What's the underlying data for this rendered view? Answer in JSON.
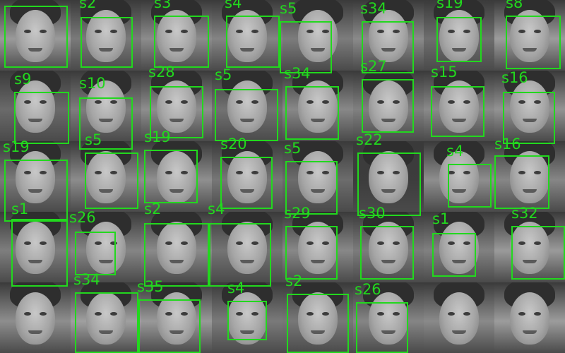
{
  "style": {
    "detection_color": "#22d81e"
  },
  "grid": {
    "columns": 8,
    "rows": 5,
    "tiles": [
      {
        "tone": "#9a9a9a"
      },
      {
        "tone": "#7a7a7a"
      },
      {
        "tone": "#8c8c8c"
      },
      {
        "tone": "#848484"
      },
      {
        "tone": "#7c7c7c"
      },
      {
        "tone": "#8a8a8a"
      },
      {
        "tone": "#6e6e6e"
      },
      {
        "tone": "#9c9c9c"
      },
      {
        "tone": "#6a6a6a"
      },
      {
        "tone": "#7e7e7e"
      },
      {
        "tone": "#8e8e8e"
      },
      {
        "tone": "#727272"
      },
      {
        "tone": "#888888"
      },
      {
        "tone": "#808080"
      },
      {
        "tone": "#8a8a8a"
      },
      {
        "tone": "#939393"
      },
      {
        "tone": "#7a7a7a"
      },
      {
        "tone": "#8c8c8c"
      },
      {
        "tone": "#8f8f8f"
      },
      {
        "tone": "#777777"
      },
      {
        "tone": "#6c6c6c"
      },
      {
        "tone": "#3d3d3d"
      },
      {
        "tone": "#8e8e8e"
      },
      {
        "tone": "#868686"
      },
      {
        "tone": "#7e7e7e"
      },
      {
        "tone": "#858585"
      },
      {
        "tone": "#8a8a8a"
      },
      {
        "tone": "#747474"
      },
      {
        "tone": "#888888"
      },
      {
        "tone": "#7c7c7c"
      },
      {
        "tone": "#818181"
      },
      {
        "tone": "#9a9a9a"
      },
      {
        "tone": "#8e8e8e"
      },
      {
        "tone": "#a0a0a0"
      },
      {
        "tone": "#999999"
      },
      {
        "tone": "#7a7a7a"
      },
      {
        "tone": "#787878"
      },
      {
        "tone": "#858585"
      },
      {
        "tone": "#8a8a8a"
      },
      {
        "tone": "#9c9c9c"
      }
    ]
  },
  "detections": [
    {
      "label": ""
    },
    {
      "label": "s2"
    },
    {
      "label": "s3"
    },
    {
      "label": "s4"
    },
    {
      "label": "s5"
    },
    {
      "label": "s34"
    },
    {
      "label": "s19"
    },
    {
      "label": "s8"
    },
    {
      "label": "s9"
    },
    {
      "label": "s10"
    },
    {
      "label": "s28"
    },
    {
      "label": "s5"
    },
    {
      "label": "s34"
    },
    {
      "label": "s27"
    },
    {
      "label": "s15"
    },
    {
      "label": "s16"
    },
    {
      "label": "s19"
    },
    {
      "label": "s5"
    },
    {
      "label": "s19"
    },
    {
      "label": "s20"
    },
    {
      "label": "s5"
    },
    {
      "label": "s22"
    },
    {
      "label": "s4"
    },
    {
      "label": "s16"
    },
    {
      "label": "s1"
    },
    {
      "label": "s26"
    },
    {
      "label": "s2"
    },
    {
      "label": "s4"
    },
    {
      "label": "s29"
    },
    {
      "label": "s30"
    },
    {
      "label": "s1"
    },
    {
      "label": "s32"
    },
    {
      "label": "s34"
    },
    {
      "label": "s35"
    },
    {
      "label": "s4"
    },
    {
      "label": "s2"
    },
    {
      "label": "s26"
    }
  ]
}
